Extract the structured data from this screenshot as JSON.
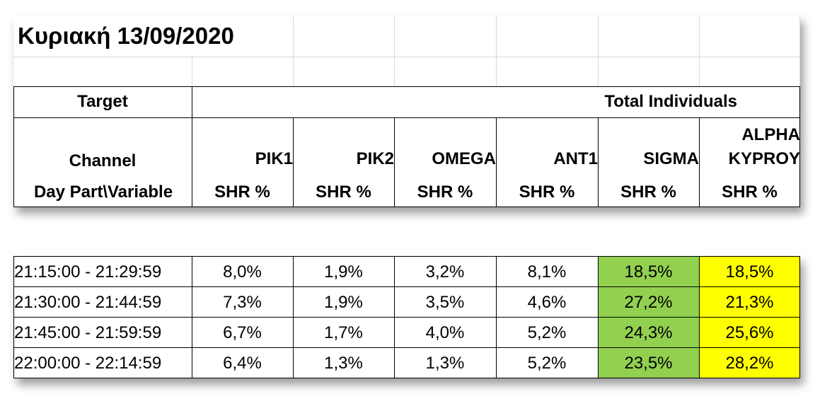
{
  "title": "Κυριακή 13/09/2020",
  "target_label": "Target",
  "target_value": "Total Individuals",
  "channel_label": "Channel",
  "daypart_label": "Day Part\\Variable",
  "channels": [
    "PIK1",
    "PIK2",
    "OMEGA",
    "ANT1",
    "SIGMA",
    "ALPHA KYPROY"
  ],
  "channel_lines": [
    [
      "PIK1"
    ],
    [
      "PIK2"
    ],
    [
      "OMEGA"
    ],
    [
      "ANT1"
    ],
    [
      "SIGMA"
    ],
    [
      "ALPHA",
      "KYPROY"
    ]
  ],
  "variable": "SHR %",
  "rows": [
    {
      "daypart": "21:15:00 - 21:29:59",
      "values": [
        "8,0%",
        "1,9%",
        "3,2%",
        "8,1%",
        "18,5%",
        "18,5%"
      ]
    },
    {
      "daypart": "21:30:00 - 21:44:59",
      "values": [
        "7,3%",
        "1,9%",
        "3,5%",
        "4,6%",
        "27,2%",
        "21,3%"
      ]
    },
    {
      "daypart": "21:45:00 - 21:59:59",
      "values": [
        "6,7%",
        "1,7%",
        "4,0%",
        "5,2%",
        "24,3%",
        "25,6%"
      ]
    },
    {
      "daypart": "22:00:00 - 22:14:59",
      "values": [
        "6,4%",
        "1,3%",
        "1,3%",
        "5,2%",
        "23,5%",
        "28,2%"
      ]
    }
  ],
  "highlight_colors": {
    "SIGMA": "#92d050",
    "ALPHA KYPROY": "#ffff00"
  }
}
